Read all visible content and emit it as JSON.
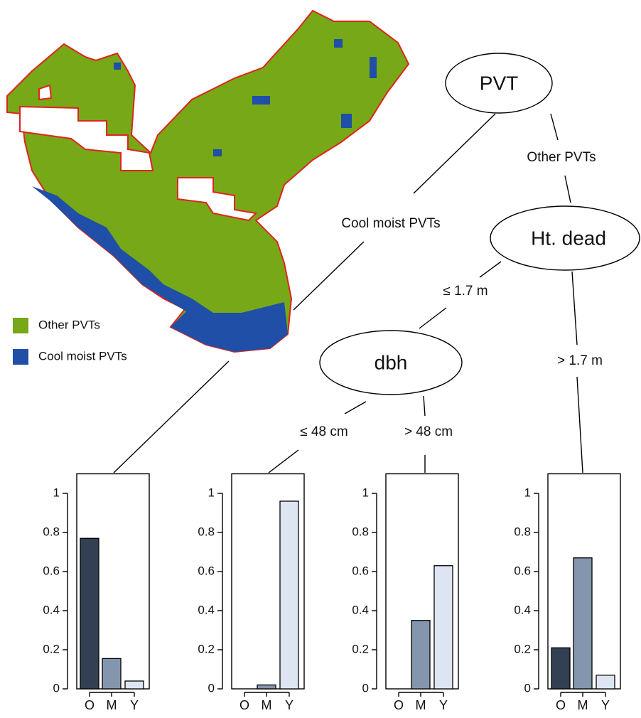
{
  "map": {
    "legend": [
      {
        "label": "Other PVTs",
        "color": "#76a818"
      },
      {
        "label": "Cool moist PVTs",
        "color": "#1f4fa6"
      }
    ]
  },
  "tree": {
    "nodes": [
      {
        "label": "PVT"
      },
      {
        "label": "Ht. dead"
      },
      {
        "label": "dbh"
      }
    ],
    "edges": [
      {
        "label": "Cool moist PVTs"
      },
      {
        "label": "Other PVTs"
      },
      {
        "label": "≤ 1.7 m"
      },
      {
        "label": "> 1.7 m"
      },
      {
        "label": "≤ 48 cm"
      },
      {
        "label": "> 48 cm"
      }
    ]
  },
  "chart_data": [
    {
      "type": "bar",
      "categories": [
        "O",
        "M",
        "Y"
      ],
      "values": [
        0.77,
        0.155,
        0.04
      ],
      "colors": [
        "#333f52",
        "#8496ad",
        "#dde5f3"
      ],
      "ylim": [
        0,
        1.1
      ],
      "yticks": [
        0,
        0.2,
        0.4,
        0.6,
        0.8,
        1
      ]
    },
    {
      "type": "bar",
      "categories": [
        "O",
        "M",
        "Y"
      ],
      "values": [
        0,
        0.02,
        0.96
      ],
      "colors": [
        "#333f52",
        "#8496ad",
        "#dde5f3"
      ],
      "ylim": [
        0,
        1.1
      ],
      "yticks": [
        0,
        0.2,
        0.4,
        0.6,
        0.8,
        1
      ]
    },
    {
      "type": "bar",
      "categories": [
        "O",
        "M",
        "Y"
      ],
      "values": [
        0,
        0.35,
        0.63
      ],
      "colors": [
        "#333f52",
        "#8496ad",
        "#dde5f3"
      ],
      "ylim": [
        0,
        1.1
      ],
      "yticks": [
        0,
        0.2,
        0.4,
        0.6,
        0.8,
        1
      ]
    },
    {
      "type": "bar",
      "categories": [
        "O",
        "M",
        "Y"
      ],
      "values": [
        0.21,
        0.67,
        0.07
      ],
      "colors": [
        "#333f52",
        "#8496ad",
        "#dde5f3"
      ],
      "ylim": [
        0,
        1.1
      ],
      "yticks": [
        0,
        0.2,
        0.4,
        0.6,
        0.8,
        1
      ]
    }
  ]
}
